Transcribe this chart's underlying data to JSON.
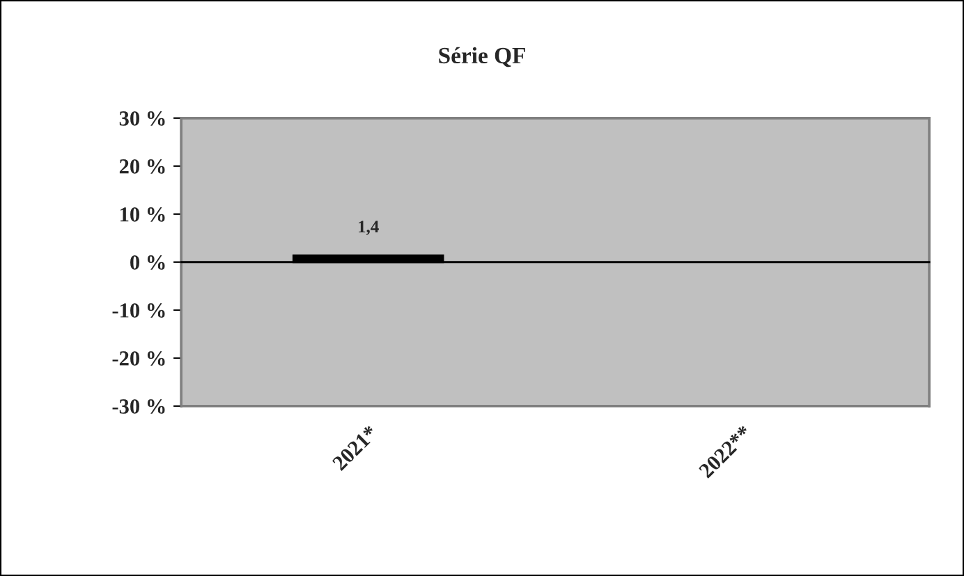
{
  "chart_data": {
    "type": "bar",
    "title": "Série QF",
    "categories": [
      "2021*",
      "2022**"
    ],
    "series": [
      {
        "color": "#000000",
        "values": [
          1.4,
          null
        ],
        "value_labels": [
          "1,4",
          null
        ]
      }
    ],
    "ylim": [
      -30,
      30
    ],
    "yticks": [
      {
        "value": -30,
        "label": "-30 %"
      },
      {
        "value": -20,
        "label": "-20 %"
      },
      {
        "value": -10,
        "label": "-10 %"
      },
      {
        "value": 0,
        "label": "0 %"
      },
      {
        "value": 10,
        "label": "10 %"
      },
      {
        "value": 20,
        "label": "20 %"
      },
      {
        "value": 30,
        "label": "30 %"
      }
    ],
    "legend": false
  }
}
